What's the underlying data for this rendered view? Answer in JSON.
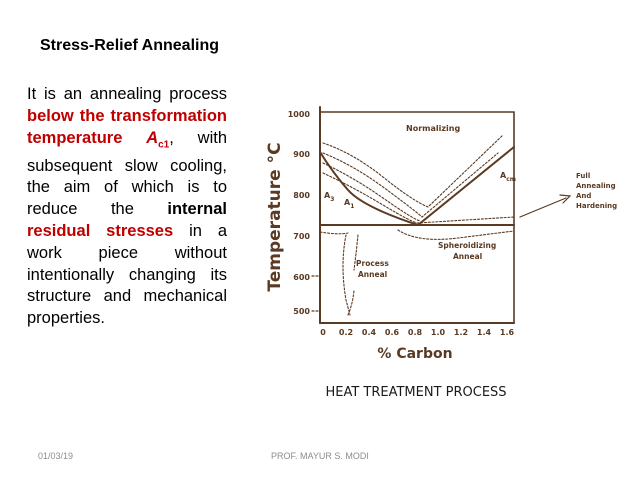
{
  "slide": {
    "title": "Stress-Relief Annealing",
    "paragraph": {
      "t1": "It is an annealing process ",
      "t2": "below the transformation temperature ",
      "t3": "A",
      "t4": "c1",
      "t5": ", with subsequent slow cooling, the aim of which is to reduce the ",
      "t6": "internal",
      "t7": " ",
      "t8": "residual stresses",
      "t9": " in a work piece without intentionally changing its structure and mechanical properties."
    },
    "colors": {
      "highlight": "#c00000",
      "diagram_ink": "#5a3a22",
      "footer": "#8c8c8c"
    }
  },
  "diagram": {
    "y_axis_title": "Temperature °C",
    "y_ticks": [
      "1000",
      "900",
      "800",
      "700",
      "600",
      "500"
    ],
    "x_ticks": [
      "0",
      "0.2",
      "0.4",
      "0.6",
      "0.8",
      "1.0",
      "1.2",
      "1.4",
      "1.6"
    ],
    "x_axis_title": "% Carbon",
    "caption": "HEAT TREATMENT PROCESS",
    "labels": {
      "normalizing": "Normalizing",
      "a3": "A",
      "a3_sub": "3",
      "a1": "A",
      "a1_sub": "1",
      "acm": "A",
      "acm_sub": "cm",
      "full_1": "Full",
      "full_2": "Annealing",
      "full_3": "And",
      "full_4": "Hardening",
      "spher_1": "Spheroidizing",
      "spher_2": "Anneal",
      "proc_1": "Process",
      "proc_2": "Anneal"
    }
  },
  "footer": {
    "date": "01/03/19",
    "author": "PROF. MAYUR S. MODI"
  }
}
